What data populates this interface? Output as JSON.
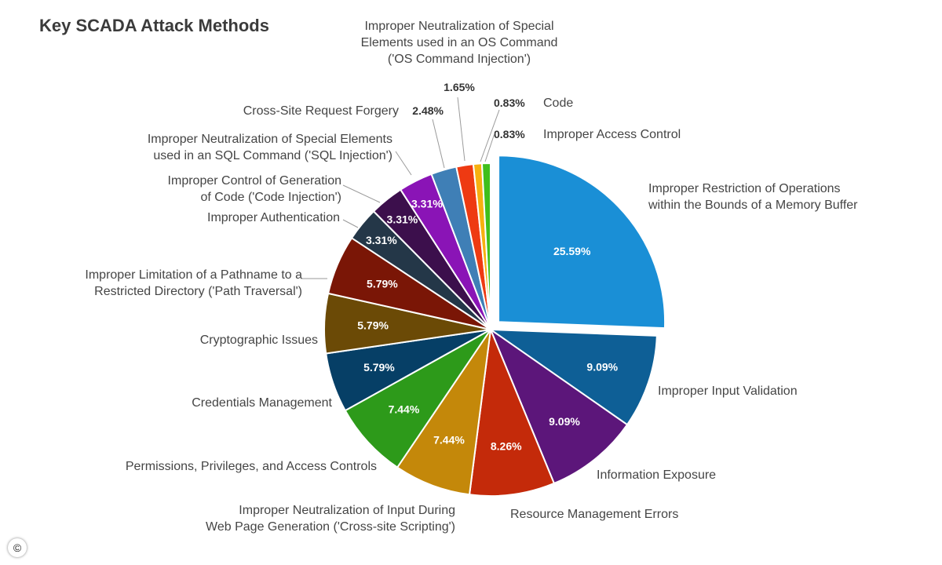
{
  "chart_data": {
    "type": "pie",
    "title": "Key SCADA Attack Methods",
    "exploded_slice": 0,
    "slices": [
      {
        "label": "Improper Restriction of Operations within the Bounds of a Memory Buffer",
        "value_label": "25.59%",
        "value": 25.59,
        "color": "#1a8fd6"
      },
      {
        "label": "Improper Input Validation",
        "value_label": "9.09%",
        "value": 9.09,
        "color": "#0e5f96"
      },
      {
        "label": "Information Exposure",
        "value_label": "9.09%",
        "value": 9.09,
        "color": "#5c167a"
      },
      {
        "label": "Resource Management Errors",
        "value_label": "8.26%",
        "value": 8.26,
        "color": "#c42a0a"
      },
      {
        "label": "Improper Neutralization of Input During Web Page Generation ('Cross-site Scripting')",
        "value_label": "7.44%",
        "value": 7.44,
        "color": "#c4880a"
      },
      {
        "label": "Permissions, Privileges, and Access Controls",
        "value_label": "7.44%",
        "value": 7.44,
        "color": "#2d9a1a"
      },
      {
        "label": "Credentials Management",
        "value_label": "5.79%",
        "value": 5.79,
        "color": "#063f66"
      },
      {
        "label": "Cryptographic Issues",
        "value_label": "5.79%",
        "value": 5.79,
        "color": "#6b4a06"
      },
      {
        "label": "Improper Limitation of a Pathname to a Restricted Directory ('Path Traversal')",
        "value_label": "5.79%",
        "value": 5.79,
        "color": "#7a1606"
      },
      {
        "label": "Improper Authentication",
        "value_label": "3.31%",
        "value": 3.31,
        "color": "#243748"
      },
      {
        "label": "Improper Control of Generation of Code ('Code Injection')",
        "value_label": "3.31%",
        "value": 3.31,
        "color": "#3c0f4c"
      },
      {
        "label": "Improper Neutralization of Special Elements used in an SQL Command ('SQL Injection')",
        "value_label": "3.31%",
        "value": 3.31,
        "color": "#8a14b6"
      },
      {
        "label": "Cross-Site Request Forgery",
        "value_label": "2.48%",
        "value": 2.48,
        "color": "#3f7fb6"
      },
      {
        "label": "Improper Neutralization of Special Elements used in an OS Command ('OS Command Injection')",
        "value_label": "1.65%",
        "value": 1.65,
        "color": "#ee3a12"
      },
      {
        "label": "Code",
        "value_label": "0.83%",
        "value": 0.83,
        "color": "#f6b010"
      },
      {
        "label": "Improper Access Control",
        "value_label": "0.83%",
        "value": 0.83,
        "color": "#3fbf1c"
      }
    ]
  },
  "copyright_symbol": "©"
}
